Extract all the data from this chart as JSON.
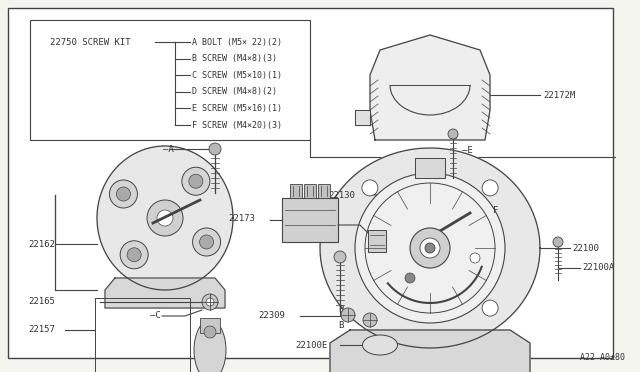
{
  "bg_color": "#f5f5f0",
  "border_color": "#444444",
  "line_color": "#444444",
  "text_color": "#333333",
  "title_bottom_right": "A22 A0±80",
  "screw_kit_label": "22750 SCREW KIT",
  "screw_items": [
    "A BOLT (M5× 22)(2)",
    "B SCREW (M4×8)(3)",
    "C SCREW (M5×10)(1)",
    "D SCREW (M4×8)(2)",
    "E SCREW (M5×16)(1)",
    "F SCREW (M4×20)(3)"
  ],
  "figsize": [
    6.4,
    3.72
  ],
  "dpi": 100
}
